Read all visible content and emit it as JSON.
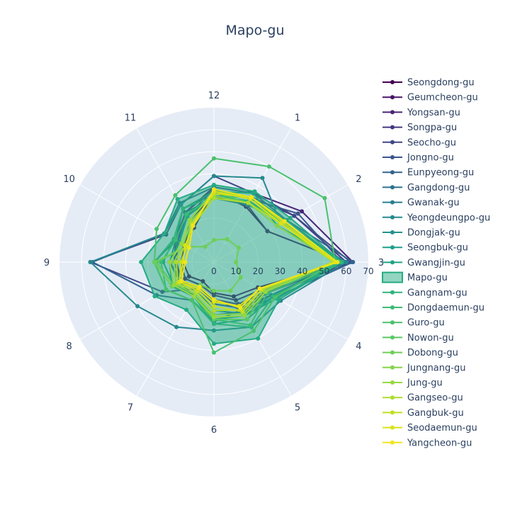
{
  "chart_data": {
    "type": "radar",
    "title": "Mapo-gu",
    "highlighted_series": "Mapo-gu",
    "categories": [
      "12",
      "1",
      "2",
      "3",
      "4",
      "5",
      "6",
      "7",
      "8",
      "9",
      "10",
      "11"
    ],
    "radial_range": [
      0,
      70
    ],
    "radial_ticks": [
      "0",
      "10",
      "20",
      "30",
      "40",
      "50",
      "60",
      "70"
    ],
    "grid": true,
    "legend_position": "right",
    "series": [
      {
        "name": "Seongdong-gu",
        "color": "#440154",
        "values": [
          32,
          29,
          28,
          60,
          23,
          18,
          14,
          10,
          13,
          14,
          16,
          18
        ]
      },
      {
        "name": "Geumcheon-gu",
        "color": "#481467",
        "values": [
          30,
          30,
          28,
          60,
          25,
          20,
          15,
          12,
          15,
          15,
          15,
          22
        ]
      },
      {
        "name": "Yongsan-gu",
        "color": "#482576",
        "values": [
          34,
          36,
          46,
          63,
          27,
          22,
          17,
          13,
          17,
          17,
          19,
          26
        ]
      },
      {
        "name": "Songpa-gu",
        "color": "#453781",
        "values": [
          33,
          34,
          42,
          60,
          28,
          23,
          18,
          13,
          17,
          18,
          20,
          26
        ]
      },
      {
        "name": "Seocho-gu",
        "color": "#3f4788",
        "values": [
          39,
          36,
          42,
          62,
          30,
          24,
          19,
          14,
          27,
          56,
          25,
          30
        ]
      },
      {
        "name": "Jongno-gu",
        "color": "#39558c",
        "values": [
          33,
          33,
          44,
          58,
          28,
          25,
          17,
          13,
          17,
          18,
          19,
          24
        ]
      },
      {
        "name": "Eunpyeong-gu",
        "color": "#32648e",
        "values": [
          34,
          36,
          38,
          63,
          32,
          25,
          27,
          20,
          30,
          55,
          26,
          31
        ]
      },
      {
        "name": "Gangdong-gu",
        "color": "#2d718e",
        "values": [
          29,
          30,
          38,
          58,
          30,
          26,
          24,
          18,
          18,
          20,
          18,
          26
        ]
      },
      {
        "name": "Gwanak-gu",
        "color": "#297e8e",
        "values": [
          30,
          34,
          36,
          59,
          30,
          27,
          22,
          15,
          17,
          20,
          20,
          28
        ]
      },
      {
        "name": "Yeongdeungpo-gu",
        "color": "#25898e",
        "values": [
          39,
          44,
          35,
          60,
          35,
          34,
          31,
          34,
          40,
          56,
          26,
          30
        ]
      },
      {
        "name": "Dongjak-gu",
        "color": "#21928c",
        "values": [
          30,
          32,
          35,
          58,
          31,
          28,
          26,
          20,
          25,
          27,
          20,
          25
        ]
      },
      {
        "name": "Seongbuk-gu",
        "color": "#1f9e89",
        "values": [
          30,
          34,
          38,
          57,
          31,
          30,
          28,
          18,
          22,
          20,
          18,
          24
        ]
      },
      {
        "name": "Gwangjin-gu",
        "color": "#1fa385",
        "values": [
          32,
          36,
          33,
          58,
          33,
          28,
          26,
          17,
          21,
          23,
          21,
          28
        ]
      },
      {
        "name": "Mapo-gu",
        "color": "#25ab82",
        "fill": true,
        "values": [
          35,
          37,
          40,
          58,
          34,
          40,
          37,
          25,
          31,
          33,
          26,
          33
        ]
      },
      {
        "name": "Gangnam-gu",
        "color": "#2eb37c",
        "values": [
          30,
          32,
          36,
          58,
          31,
          34,
          28,
          20,
          25,
          27,
          21,
          28
        ]
      },
      {
        "name": "Dongdaemun-gu",
        "color": "#3bbb75",
        "values": [
          30,
          34,
          35,
          57,
          28,
          33,
          26,
          20,
          25,
          24,
          20,
          25
        ]
      },
      {
        "name": "Guro-gu",
        "color": "#4ac16d",
        "values": [
          47,
          50,
          58,
          55,
          32,
          36,
          41,
          20,
          25,
          27,
          30,
          35
        ]
      },
      {
        "name": "Nowon-gu",
        "color": "#59c864",
        "values": [
          32,
          31,
          36,
          55,
          27,
          30,
          26,
          18,
          21,
          26,
          14,
          22
        ]
      },
      {
        "name": "Dobong-gu",
        "color": "#6ece58",
        "values": [
          10,
          12,
          13,
          10,
          14,
          15,
          13,
          12,
          22,
          27,
          14,
          8
        ]
      },
      {
        "name": "Jungnang-gu",
        "color": "#84d44b",
        "values": [
          30,
          31,
          33,
          55,
          26,
          27,
          24,
          17,
          20,
          18,
          16,
          21
        ]
      },
      {
        "name": "Jung-gu",
        "color": "#95d840",
        "values": [
          32,
          34,
          37,
          55,
          27,
          28,
          25,
          18,
          21,
          20,
          17,
          22
        ]
      },
      {
        "name": "Gangseo-gu",
        "color": "#addc30",
        "values": [
          29,
          31,
          35,
          54,
          25,
          25,
          22,
          16,
          19,
          17,
          15,
          19
        ]
      },
      {
        "name": "Gangbuk-gu",
        "color": "#c2df23",
        "values": [
          31,
          34,
          36,
          55,
          25,
          26,
          20,
          15,
          18,
          15,
          14,
          20
        ]
      },
      {
        "name": "Seodaemun-gu",
        "color": "#d8e219",
        "values": [
          32,
          33,
          35,
          55,
          24,
          23,
          18,
          14,
          18,
          14,
          15,
          19
        ]
      },
      {
        "name": "Yangcheon-gu",
        "color": "#f0e51b",
        "values": [
          33,
          34,
          37,
          56,
          24,
          24,
          17,
          13,
          17,
          13,
          13,
          19
        ]
      }
    ]
  }
}
